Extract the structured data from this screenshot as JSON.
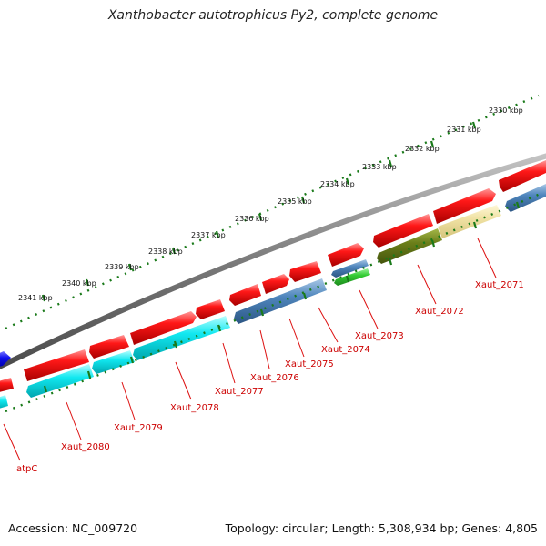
{
  "title": "Xanthobacter autotrophicus Py2, complete genome",
  "footer": {
    "accession": "Accession: NC_009720",
    "topology": "Topology: circular; Length: 5,308,934 bp; Genes: 4,805"
  },
  "colors": {
    "backbone": "#8a8a8a",
    "forward_cds": "#ee1111",
    "reverse_cds_a": "#00e5ee",
    "reverse_cds_b": "#4a80b8",
    "reverse_cds_c": "#6b7f1a",
    "reverse_cds_d": "#eeddaa",
    "reverse_cds_e": "#33cc33",
    "tick": "#1a7a1a",
    "label": "#cc0000"
  },
  "kbp_labels": [
    "2330 kbp",
    "2331 kbp",
    "2332 kbp",
    "2333 kbp",
    "2334 kbp",
    "2335 kbp",
    "2336 kbp",
    "2337 kbp",
    "2338 kbp",
    "2339 kbp",
    "2340 kbp",
    "2341 kbp"
  ],
  "gene_labels": [
    "Xaut_2071",
    "Xaut_2072",
    "Xaut_2073",
    "Xaut_2074",
    "Xaut_2075",
    "Xaut_2076",
    "Xaut_2077",
    "Xaut_2078",
    "Xaut_2079",
    "Xaut_2080",
    "atpC"
  ]
}
